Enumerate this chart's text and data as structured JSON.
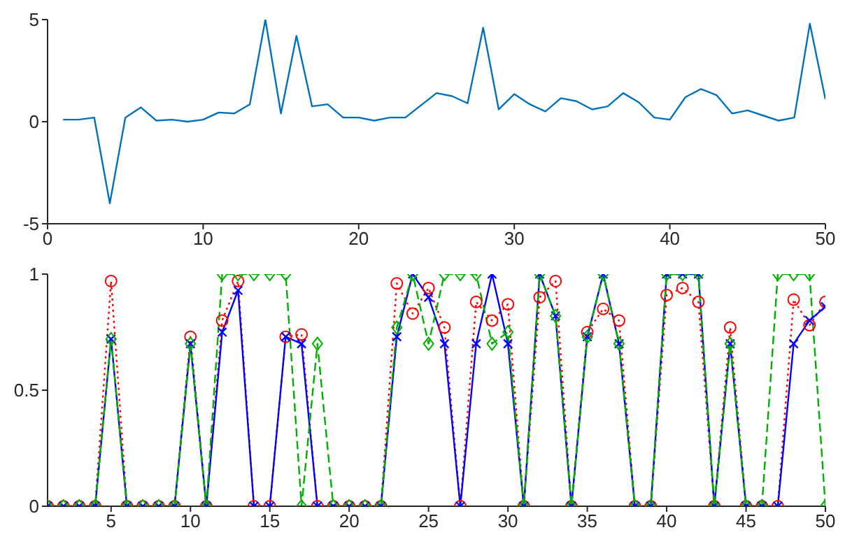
{
  "chart_data": [
    {
      "type": "line",
      "x": [
        1,
        2,
        3,
        4,
        5,
        6,
        7,
        8,
        9,
        10,
        11,
        12,
        13,
        14,
        15,
        16,
        17,
        18,
        19,
        20,
        21,
        22,
        23,
        24,
        25,
        26,
        27,
        28,
        29,
        30,
        31,
        32,
        33,
        34,
        35,
        36,
        37,
        38,
        39,
        40,
        41,
        42,
        43,
        44,
        45,
        46,
        47,
        48,
        49,
        50
      ],
      "series": [
        {
          "color": "#0072bd",
          "values": [
            0.1,
            0.1,
            0.2,
            -4,
            0.2,
            0.7,
            0.05,
            0.1,
            0,
            0.1,
            0.45,
            0.4,
            0.85,
            5,
            0.4,
            4.2,
            0.75,
            0.85,
            0.2,
            0.2,
            0.05,
            0.2,
            0.2,
            0.8,
            1.4,
            1.25,
            0.9,
            4.6,
            0.6,
            1.35,
            0.85,
            0.5,
            1.15,
            1.0,
            0.6,
            0.75,
            1.4,
            0.95,
            0.2,
            0.1,
            1.2,
            1.6,
            1.3,
            0.4,
            0.55,
            0.3,
            0.05,
            0.2,
            4.8,
            1.1
          ]
        }
      ],
      "xlim": [
        0,
        50
      ],
      "xticks": [
        0,
        10,
        20,
        30,
        40,
        50
      ],
      "ylim": [
        -5,
        5
      ],
      "yticks": [
        -5,
        0,
        5
      ],
      "grid": false,
      "legend": false,
      "marker": "none",
      "line_style": "solid"
    },
    {
      "type": "line",
      "x": [
        1,
        2,
        3,
        4,
        5,
        6,
        7,
        8,
        9,
        10,
        11,
        12,
        13,
        14,
        15,
        16,
        17,
        18,
        19,
        20,
        21,
        22,
        23,
        24,
        25,
        26,
        27,
        28,
        29,
        30,
        31,
        32,
        33,
        34,
        35,
        36,
        37,
        38,
        39,
        40,
        41,
        42,
        43,
        44,
        45,
        46,
        47,
        48,
        49,
        50
      ],
      "series": [
        {
          "color": "#ff0000",
          "marker": "circle",
          "line_style": "dotted",
          "values": [
            0,
            0,
            0,
            0,
            0.97,
            0,
            0,
            0,
            0,
            0.73,
            0,
            0.8,
            0.97,
            0,
            0,
            0.73,
            0.74,
            0,
            0,
            0,
            0,
            0,
            0.96,
            0.83,
            0.94,
            0.77,
            0,
            0.88,
            0.8,
            0.87,
            0,
            0.9,
            0.97,
            0,
            0.75,
            0.85,
            0.8,
            0,
            0,
            0.91,
            0.94,
            0.88,
            0,
            0.77,
            0,
            0,
            0,
            0.89,
            0.78,
            0.88
          ]
        },
        {
          "color": "#0000ff",
          "marker": "cross",
          "line_style": "solid",
          "values": [
            0,
            0,
            0,
            0,
            0.72,
            0,
            0,
            0,
            0,
            0.7,
            0,
            0.75,
            0.93,
            0,
            0,
            0.73,
            0.7,
            0,
            0,
            0,
            0,
            0,
            0.73,
            1,
            0.9,
            0.7,
            0,
            0.7,
            1,
            0.7,
            0,
            1,
            0.82,
            0,
            0.73,
            1,
            0.7,
            0,
            0,
            1,
            1,
            1,
            0,
            0.7,
            0,
            0,
            0,
            0.7,
            0.8,
            0.86
          ]
        },
        {
          "color": "#00b000",
          "marker": "diamond",
          "line_style": "dashed",
          "values": [
            0,
            0,
            0,
            0,
            0.72,
            0,
            0,
            0,
            0,
            0.7,
            0,
            1,
            1,
            1,
            1,
            1,
            0,
            0.7,
            0,
            0,
            0,
            0,
            0.77,
            1,
            0.7,
            1,
            1,
            1,
            0.7,
            0.75,
            0,
            1,
            0.82,
            0,
            0.73,
            1,
            0.7,
            0,
            0,
            1,
            1,
            1,
            0,
            0.7,
            0,
            0,
            1,
            1,
            1,
            0
          ]
        }
      ],
      "xlim": [
        1,
        50
      ],
      "xticks": [
        5,
        10,
        15,
        20,
        25,
        30,
        35,
        40,
        45,
        50
      ],
      "ylim": [
        0,
        1
      ],
      "yticks": [
        0,
        {
          "value": 0.5,
          "label": "0.5"
        },
        1
      ],
      "grid": false,
      "legend": false
    }
  ]
}
